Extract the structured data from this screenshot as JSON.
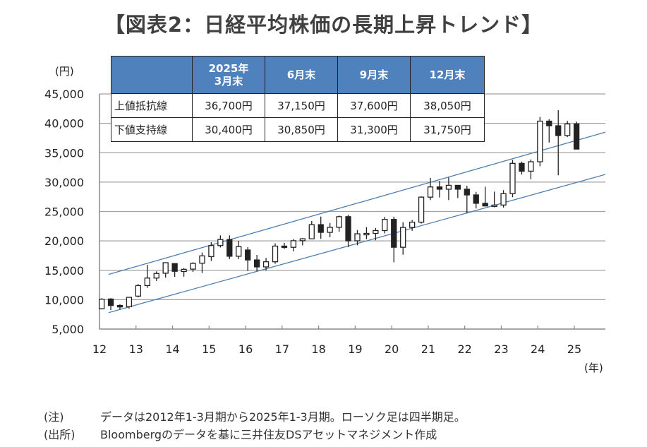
{
  "title": "【図表2：日経平均株価の長期上昇トレンド】",
  "table": {
    "headers": [
      "",
      "2025年\n3月末",
      "6月末",
      "9月末",
      "12月末"
    ],
    "rows": [
      {
        "label": "上値抵抗線",
        "values": [
          "36,700円",
          "37,150円",
          "37,600円",
          "38,050円"
        ]
      },
      {
        "label": "下値支持線",
        "values": [
          "30,400円",
          "30,850円",
          "31,300円",
          "31,750円"
        ]
      }
    ]
  },
  "notes": [
    {
      "key": "(注)",
      "text": "データは2012年1-3月期から2025年1-3月期。ローソク足は四半期足。"
    },
    {
      "key": "(出所)",
      "text": "Bloombergのデータを基に三井住友DSアセットマネジメント作成"
    }
  ],
  "colors": {
    "up_fill": "#ffffff",
    "down_fill": "#222222",
    "channel": "#4f7fb0",
    "grid": "#a0a0a0"
  },
  "chart_data": {
    "type": "candlestick",
    "title": "日経平均株価の長期上昇トレンド",
    "ylabel": "(円)",
    "xlabel": "(年)",
    "ylim": [
      5000,
      45000
    ],
    "yticks": [
      5000,
      10000,
      15000,
      20000,
      25000,
      30000,
      35000,
      40000,
      45000
    ],
    "ytick_labels": [
      "5,000",
      "10,000",
      "15,000",
      "20,000",
      "25,000",
      "30,000",
      "35,000",
      "40,000",
      "45,000"
    ],
    "xlim": [
      12,
      25.85
    ],
    "xticks": [
      12,
      13,
      14,
      15,
      16,
      17,
      18,
      19,
      20,
      21,
      22,
      23,
      24,
      25
    ],
    "xtick_labels": [
      "12",
      "13",
      "14",
      "15",
      "16",
      "17",
      "18",
      "19",
      "20",
      "21",
      "22",
      "23",
      "24",
      "25"
    ],
    "grid": true,
    "start_quarter": "2012Q1",
    "ohlc": [
      [
        8455,
        10255,
        8349,
        10083
      ],
      [
        10110,
        10255,
        8238,
        9007
      ],
      [
        9006,
        9222,
        8328,
        8870
      ],
      [
        8800,
        10433,
        8488,
        10395
      ],
      [
        10604,
        12650,
        10398,
        12397
      ],
      [
        12400,
        15942,
        12003,
        13677
      ],
      [
        13677,
        14817,
        13188,
        14455
      ],
      [
        14500,
        16320,
        13748,
        16291
      ],
      [
        16147,
        16164,
        13885,
        14827
      ],
      [
        14800,
        15376,
        13910,
        15162
      ],
      [
        15200,
        16374,
        14720,
        16173
      ],
      [
        16200,
        18030,
        14529,
        17450
      ],
      [
        17325,
        19778,
        16592,
        19206
      ],
      [
        19206,
        20952,
        18885,
        20235
      ],
      [
        20235,
        20946,
        16901,
        17388
      ],
      [
        17388,
        20012,
        16901,
        19033
      ],
      [
        18450,
        18951,
        14865,
        16758
      ],
      [
        16758,
        17613,
        14864,
        15575
      ],
      [
        15575,
        17100,
        14952,
        16449
      ],
      [
        16449,
        19592,
        16111,
        19114
      ],
      [
        19114,
        19668,
        18650,
        18909
      ],
      [
        18909,
        20318,
        18224,
        20033
      ],
      [
        20033,
        20481,
        19239,
        20356
      ],
      [
        20356,
        23382,
        20356,
        22764
      ],
      [
        22764,
        24129,
        20347,
        21454
      ],
      [
        21454,
        23050,
        20617,
        22305
      ],
      [
        22305,
        24306,
        21546,
        24120
      ],
      [
        24120,
        24448,
        18948,
        20015
      ],
      [
        20015,
        21860,
        19241,
        21206
      ],
      [
        21206,
        22362,
        20289,
        21276
      ],
      [
        21276,
        22200,
        20110,
        21756
      ],
      [
        21756,
        24091,
        21276,
        23657
      ],
      [
        23657,
        24115,
        16358,
        18917
      ],
      [
        18917,
        23178,
        17646,
        22288
      ],
      [
        22288,
        23559,
        21710,
        23185
      ],
      [
        23185,
        27568,
        22948,
        27444
      ],
      [
        27444,
        30714,
        26954,
        29179
      ],
      [
        29179,
        30208,
        27385,
        28792
      ],
      [
        28792,
        30795,
        26954,
        29453
      ],
      [
        29453,
        29489,
        27293,
        28792
      ],
      [
        28792,
        29388,
        24681,
        27821
      ],
      [
        27821,
        28338,
        25520,
        26393
      ],
      [
        26393,
        29222,
        25935,
        25937
      ],
      [
        25937,
        28383,
        25716,
        26095
      ],
      [
        26095,
        28623,
        25662,
        28041
      ],
      [
        28041,
        33772,
        27427,
        33189
      ],
      [
        33189,
        33488,
        31275,
        31858
      ],
      [
        31858,
        33853,
        30487,
        33464
      ],
      [
        33464,
        41087,
        32693,
        40369
      ],
      [
        40369,
        40697,
        36733,
        39583
      ],
      [
        39583,
        42224,
        31156,
        37919
      ],
      [
        37919,
        40398,
        37651,
        39894
      ],
      [
        39894,
        40288,
        35617,
        35617
      ]
    ],
    "channel": {
      "upper": {
        "name": "上値抵抗線",
        "x": [
          12.25,
          25.85
        ],
        "y": [
          14300,
          38500
        ]
      },
      "lower": {
        "name": "下値支持線",
        "x": [
          12.25,
          25.85
        ],
        "y": [
          7800,
          31300
        ]
      }
    }
  }
}
